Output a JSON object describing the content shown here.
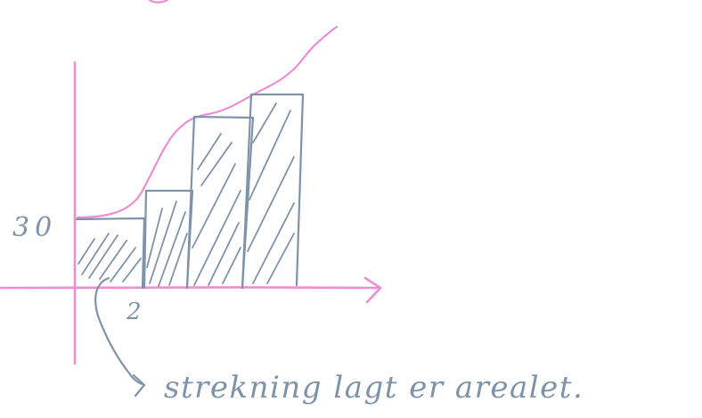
{
  "sketch": {
    "y_value_label": "30",
    "x_value_label": "2",
    "note": "strekning lagt er arealet.",
    "colors": {
      "axes_and_curve": "#ea8fd1",
      "pencil_ink": "#7f93a8",
      "background": "#ffffff"
    }
  }
}
